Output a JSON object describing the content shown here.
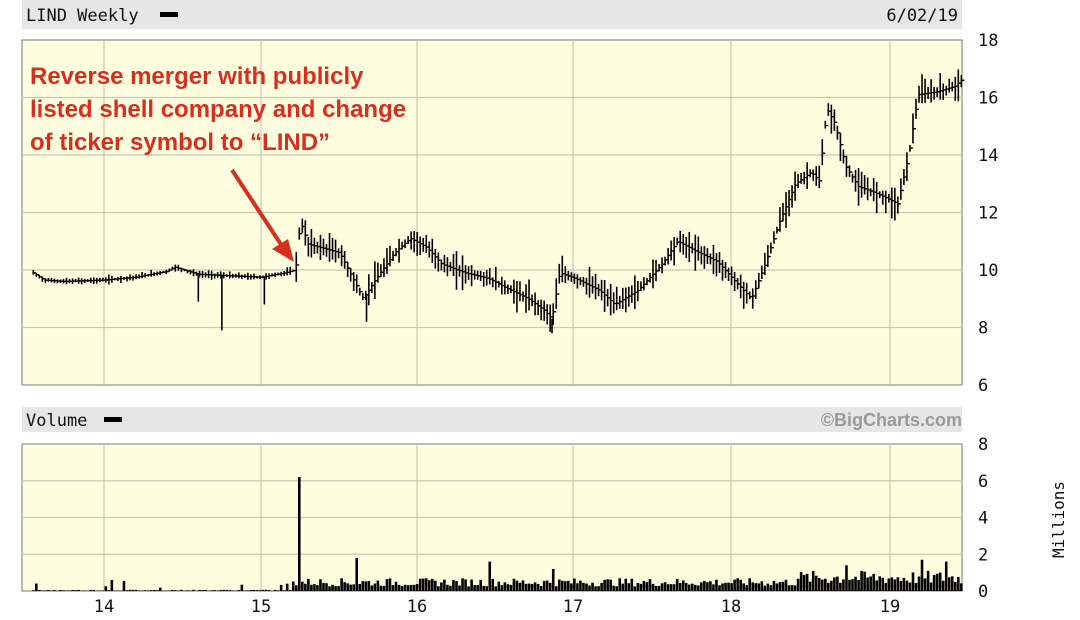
{
  "header": {
    "title": "LIND Weekly",
    "date": "6/02/19"
  },
  "annotation": {
    "lines": [
      "Reverse merger with publicly",
      "listed shell company and change",
      "of ticker symbol to “LIND”"
    ],
    "color": "#d62e1f"
  },
  "volume_header": {
    "title": "Volume",
    "brand": "©BigCharts.com",
    "units": "Millions"
  },
  "colors": {
    "plot_bg": "#ffffe0",
    "header_bg": "#e6e6e6",
    "grid": "#c8c8b4",
    "bars": "#000000"
  },
  "chart_data": [
    {
      "type": "ohlc-weekly",
      "title": "LIND Weekly",
      "x_ticks": [
        "14",
        "15",
        "16",
        "17",
        "18",
        "19"
      ],
      "xlim": [
        2013.55,
        2019.46
      ],
      "ylim": [
        6,
        18
      ],
      "y_ticks": [
        18,
        16,
        14,
        12,
        10,
        8,
        6
      ],
      "grid": true,
      "close_series": {
        "x": [
          2013.55,
          2013.62,
          2013.75,
          2014.0,
          2014.2,
          2014.4,
          2014.45,
          2014.6,
          2014.8,
          2015.0,
          2015.15,
          2015.22,
          2015.25,
          2015.3,
          2015.5,
          2015.65,
          2015.72,
          2015.85,
          2015.95,
          2016.05,
          2016.15,
          2016.3,
          2016.45,
          2016.55,
          2016.7,
          2016.8,
          2016.85,
          2016.9,
          2017.0,
          2017.15,
          2017.25,
          2017.4,
          2017.55,
          2017.65,
          2017.75,
          2017.9,
          2018.0,
          2018.05,
          2018.12,
          2018.2,
          2018.3,
          2018.4,
          2018.5,
          2018.55,
          2018.6,
          2018.65,
          2018.72,
          2018.8,
          2018.9,
          2018.98,
          2019.05,
          2019.12,
          2019.18,
          2019.3,
          2019.42,
          2019.45
        ],
        "y": [
          9.9,
          9.65,
          9.6,
          9.65,
          9.75,
          9.95,
          10.1,
          9.85,
          9.8,
          9.75,
          9.9,
          10.0,
          11.7,
          10.9,
          10.6,
          9.0,
          9.6,
          10.6,
          11.1,
          10.8,
          10.2,
          9.9,
          9.7,
          9.4,
          9.0,
          8.6,
          8.3,
          9.9,
          9.7,
          9.3,
          8.8,
          9.3,
          10.2,
          11.0,
          10.7,
          10.3,
          9.7,
          9.4,
          9.0,
          10.1,
          11.7,
          13.0,
          13.4,
          13.1,
          15.6,
          15.1,
          13.6,
          12.9,
          12.7,
          12.5,
          12.3,
          14.0,
          16.1,
          16.2,
          16.4,
          16.6
        ]
      }
    },
    {
      "type": "bar",
      "title": "Volume",
      "ylabel": "Millions",
      "x_ticks": [
        "14",
        "15",
        "16",
        "17",
        "18",
        "19"
      ],
      "ylim": [
        0,
        8
      ],
      "y_ticks": [
        8,
        6,
        4,
        2,
        0
      ],
      "grid": true,
      "spikes": {
        "x": [
          2014.05,
          2014.12,
          2015.25,
          2015.6,
          2016.45,
          2016.85,
          2018.72,
          2019.2,
          2019.35
        ],
        "y": [
          0.6,
          0.55,
          6.2,
          1.8,
          1.6,
          1.2,
          1.4,
          1.7,
          1.6
        ]
      }
    }
  ]
}
